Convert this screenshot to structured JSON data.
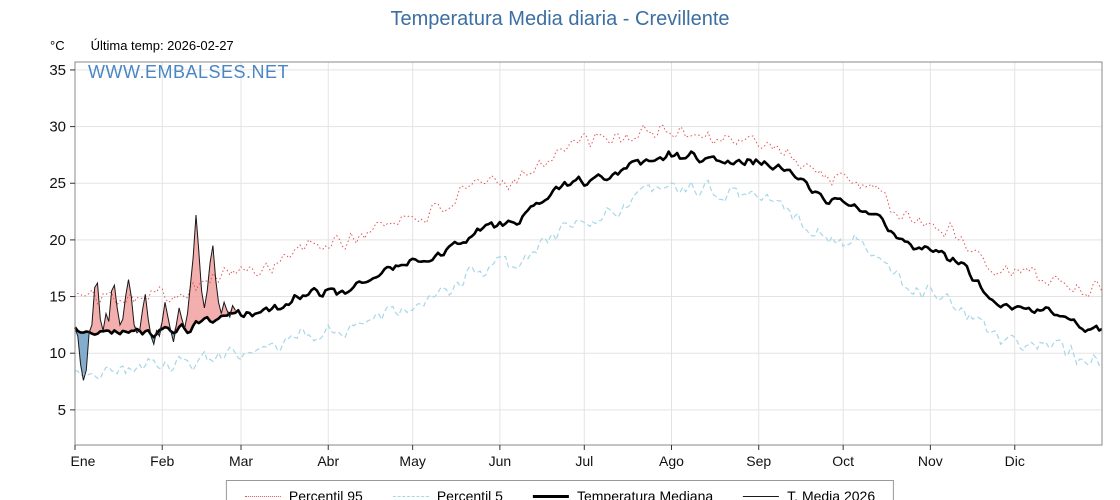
{
  "header": {
    "last_temp_label": "Última temp: 2026-02-27",
    "watermark": "WWW.EMBALSES.NET"
  },
  "colors": {
    "title": "#3b6fa3",
    "watermark": "#4a86c4",
    "grid": "#e3e3e3",
    "frame": "#8a8a8a",
    "fill_above": "#f09a9a",
    "fill_below": "#6d9ec4"
  },
  "chart_data": {
    "type": "line",
    "title": "Temperatura Media diaria - Crevillente",
    "ylabel": "°C",
    "xlabel": "",
    "grid": true,
    "legend_position": "bottom",
    "ylim": [
      1.9,
      35.7
    ],
    "yticks": [
      5,
      10,
      15,
      20,
      25,
      30,
      35
    ],
    "x_tick_labels": [
      "Ene",
      "Feb",
      "Mar",
      "Abr",
      "May",
      "Jun",
      "Jul",
      "Ago",
      "Sep",
      "Oct",
      "Nov",
      "Dic"
    ],
    "month_start_days": [
      0,
      31,
      59,
      90,
      120,
      151,
      181,
      212,
      243,
      273,
      304,
      334,
      365
    ],
    "series": [
      {
        "name": "Percentil 95",
        "color": "#e25555",
        "style": "dotted",
        "width": 1,
        "jitter": 0.8,
        "monthly_anchors": [
          15.0,
          15.2,
          17.2,
          19.6,
          22.0,
          25.2,
          28.6,
          29.6,
          28.6,
          25.3,
          21.3,
          17.2,
          15.6
        ]
      },
      {
        "name": "Percentil 5",
        "color": "#a6d7e8",
        "style": "dashed",
        "width": 1,
        "jitter": 0.8,
        "monthly_anchors": [
          8.3,
          8.9,
          9.7,
          11.9,
          14.3,
          17.6,
          21.6,
          24.6,
          23.9,
          19.9,
          15.4,
          11.0,
          9.6
        ]
      },
      {
        "name": "Temperatura Mediana",
        "color": "#000000",
        "style": "solid",
        "width": 2.6,
        "jitter": 0.45,
        "monthly_anchors": [
          11.9,
          11.9,
          13.3,
          15.4,
          17.9,
          21.3,
          25.2,
          27.4,
          26.9,
          23.3,
          19.2,
          14.2,
          12.1
        ]
      },
      {
        "name": "T. Media 2026",
        "color": "#1a1a1a",
        "style": "solid",
        "width": 1,
        "daily_values": [
          12.2,
          11.5,
          9.0,
          7.6,
          8.5,
          11.8,
          12.5,
          15.8,
          16.2,
          13.0,
          12.0,
          13.5,
          12.8,
          15.5,
          16.0,
          14.0,
          12.5,
          13.0,
          15.0,
          16.5,
          15.0,
          12.5,
          11.8,
          12.0,
          13.8,
          15.2,
          13.0,
          11.5,
          10.8,
          12.0,
          11.5,
          12.8,
          14.5,
          13.2,
          12.0,
          11.0,
          12.5,
          14.0,
          13.0,
          12.2,
          13.5,
          16.0,
          18.5,
          22.2,
          19.0,
          15.5,
          14.0,
          15.5,
          18.0,
          19.5,
          16.5,
          14.5,
          13.5,
          14.5,
          13.8,
          13.2,
          14.2,
          13.8
        ]
      }
    ]
  }
}
